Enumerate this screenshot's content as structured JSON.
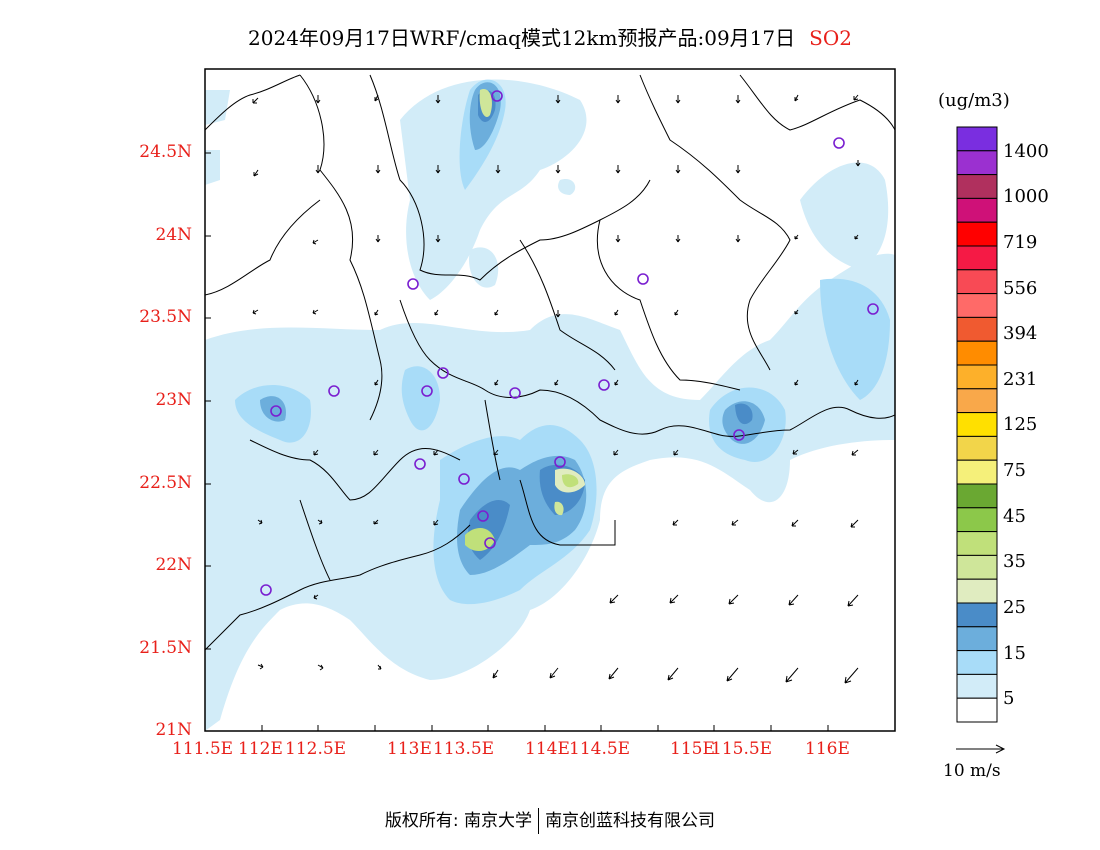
{
  "title": {
    "main": "2024年09月17日WRF/cmaq模式12km预报产品:09月17日",
    "pollutant": "SO2"
  },
  "map": {
    "lat_labels": [
      "24.5N",
      "24N",
      "23.5N",
      "23N",
      "22.5N",
      "22N",
      "21.5N",
      "21N"
    ],
    "lon_labels": [
      "111.5E",
      "112E",
      "112.5E",
      "113E",
      "113.5E",
      "114E",
      "114.5E",
      "115E",
      "115.5E",
      "116E"
    ],
    "land_color": "#ffffff",
    "boundary_color": "#000000"
  },
  "legend": {
    "unit": "(ug/m3)",
    "labels": [
      "1400",
      "1000",
      "719",
      "556",
      "394",
      "231",
      "125",
      "75",
      "45",
      "35",
      "25",
      "15",
      "5"
    ],
    "colors": [
      "#7a2ee0",
      "#9b30d0",
      "#b0305e",
      "#cf1178",
      "#ff0000",
      "#f51a45",
      "#f84a55",
      "#ff6a68",
      "#f05a30",
      "#ff8c00",
      "#fdb02a",
      "#f9a84a",
      "#ffe000",
      "#f2d54a",
      "#f5f07a",
      "#6aa832",
      "#8cc84a",
      "#c0e07a",
      "#cfe69a",
      "#e0ecc0",
      "#4a8cc8",
      "#6caedc",
      "#a8dcf8",
      "#d2ecf8",
      "#ffffff"
    ]
  },
  "wind_reference": "10  m/s",
  "footer": {
    "left": "版权所有: 南京大学",
    "right": "南京创蓝科技有限公司"
  }
}
